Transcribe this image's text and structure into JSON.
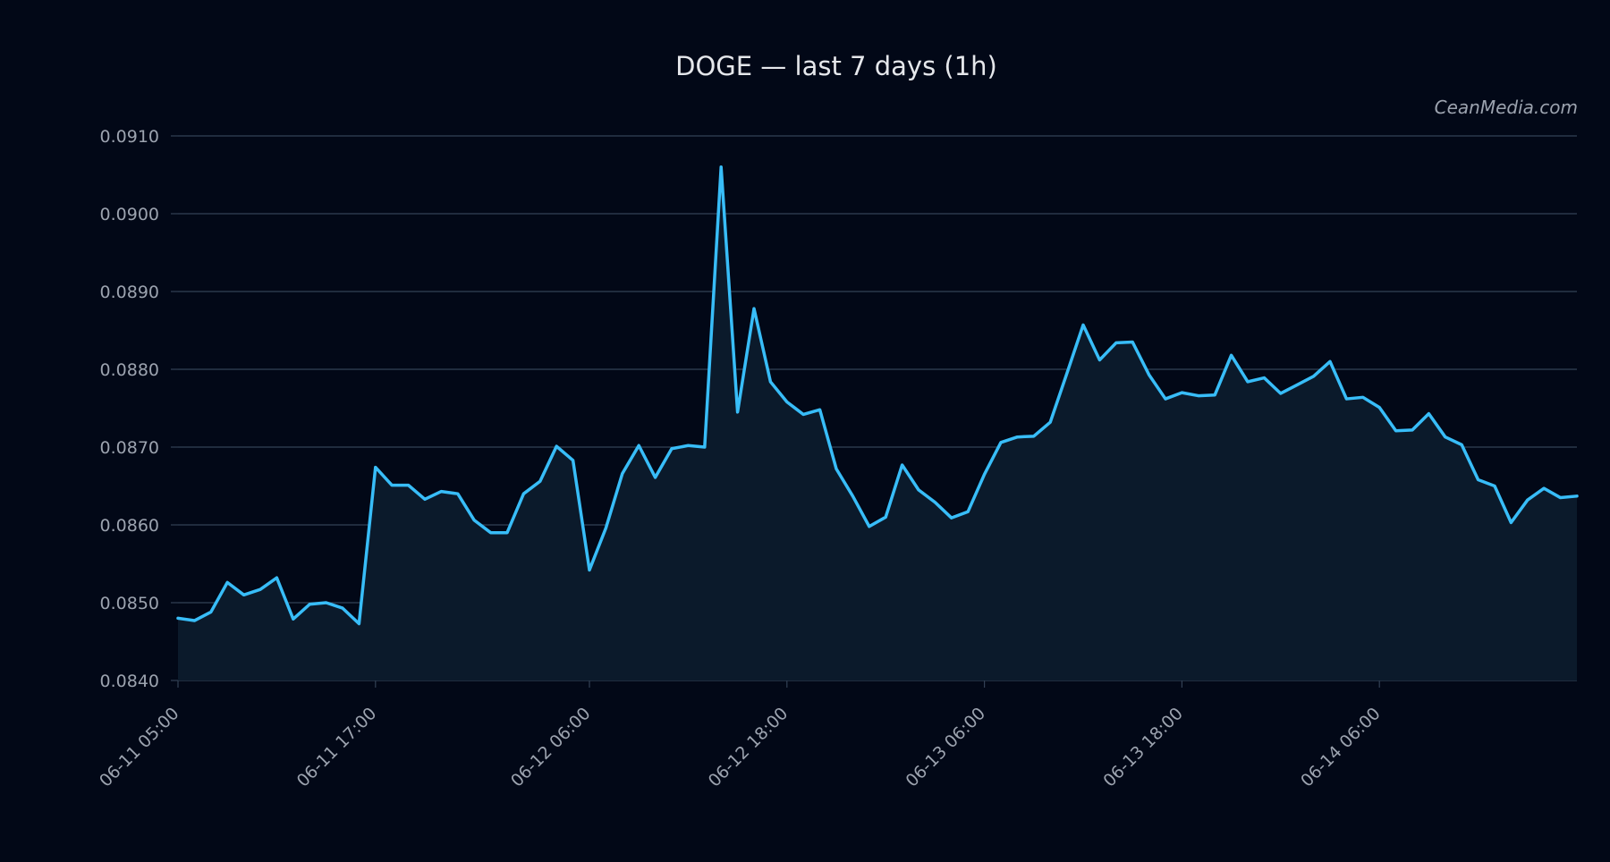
{
  "title": "DOGE — last 7 days (1h)",
  "watermark": "CeanMedia.com",
  "colors": {
    "background": "#020817",
    "line": "#38bdf8",
    "area_fill": "#0b1a2b",
    "grid": "#334155",
    "tick_text": "#9ca3af",
    "title_text": "#e5e7eb",
    "watermark_text": "#9ca3af"
  },
  "chart_data": {
    "type": "area",
    "title": "DOGE — last 7 days (1h)",
    "xlabel": "",
    "ylabel": "",
    "x_start": "06-11 05:00",
    "x_step": "1h",
    "x_tick_labels": [
      {
        "x": "06-11 05:00",
        "label": "06-11 05:00"
      },
      {
        "x": "06-11 17:00",
        "label": "06-11 17:00"
      },
      {
        "x": "06-12 06:00",
        "label": "06-12 06:00"
      },
      {
        "x": "06-12 18:00",
        "label": "06-12 18:00"
      },
      {
        "x": "06-13 06:00",
        "label": "06-13 06:00"
      },
      {
        "x": "06-13 18:00",
        "label": "06-13 18:00"
      },
      {
        "x": "06-14 06:00",
        "label": "06-14 06:00"
      }
    ],
    "y_ticks": [
      "0.0840",
      "0.0850",
      "0.0860",
      "0.0870",
      "0.0880",
      "0.0890",
      "0.0900",
      "0.0910"
    ],
    "ylim": [
      0.084,
      0.091
    ],
    "grid": true,
    "legend": "none",
    "series": [
      {
        "values": [
          0.0848,
          0.08477,
          0.08488,
          0.08526,
          0.0851,
          0.08517,
          0.08532,
          0.08479,
          0.08498,
          0.085,
          0.08493,
          0.08473,
          0.08674,
          0.08651,
          0.08651,
          0.08633,
          0.08643,
          0.0864,
          0.08606,
          0.0859,
          0.0859,
          0.0864,
          0.08656,
          0.08701,
          0.08683,
          0.08542,
          0.08596,
          0.08666,
          0.08702,
          0.08661,
          0.08698,
          0.08702,
          0.087,
          0.0906,
          0.08745,
          0.08878,
          0.08784,
          0.08758,
          0.08742,
          0.08748,
          0.08672,
          0.08637,
          0.08598,
          0.0861,
          0.08677,
          0.08645,
          0.08629,
          0.08609,
          0.08617,
          0.08665,
          0.08706,
          0.08713,
          0.08714,
          0.08732,
          0.08794,
          0.08857,
          0.08812,
          0.08834,
          0.08835,
          0.08793,
          0.08762,
          0.0877,
          0.08766,
          0.08767,
          0.08818,
          0.08784,
          0.08789,
          0.08769,
          0.0878,
          0.08791,
          0.0881,
          0.08762,
          0.08764,
          0.08751,
          0.08721,
          0.08722,
          0.08743,
          0.08713,
          0.08703,
          0.08658,
          0.0865,
          0.08603,
          0.08632,
          0.08647,
          0.08635,
          0.08637
        ]
      }
    ]
  }
}
